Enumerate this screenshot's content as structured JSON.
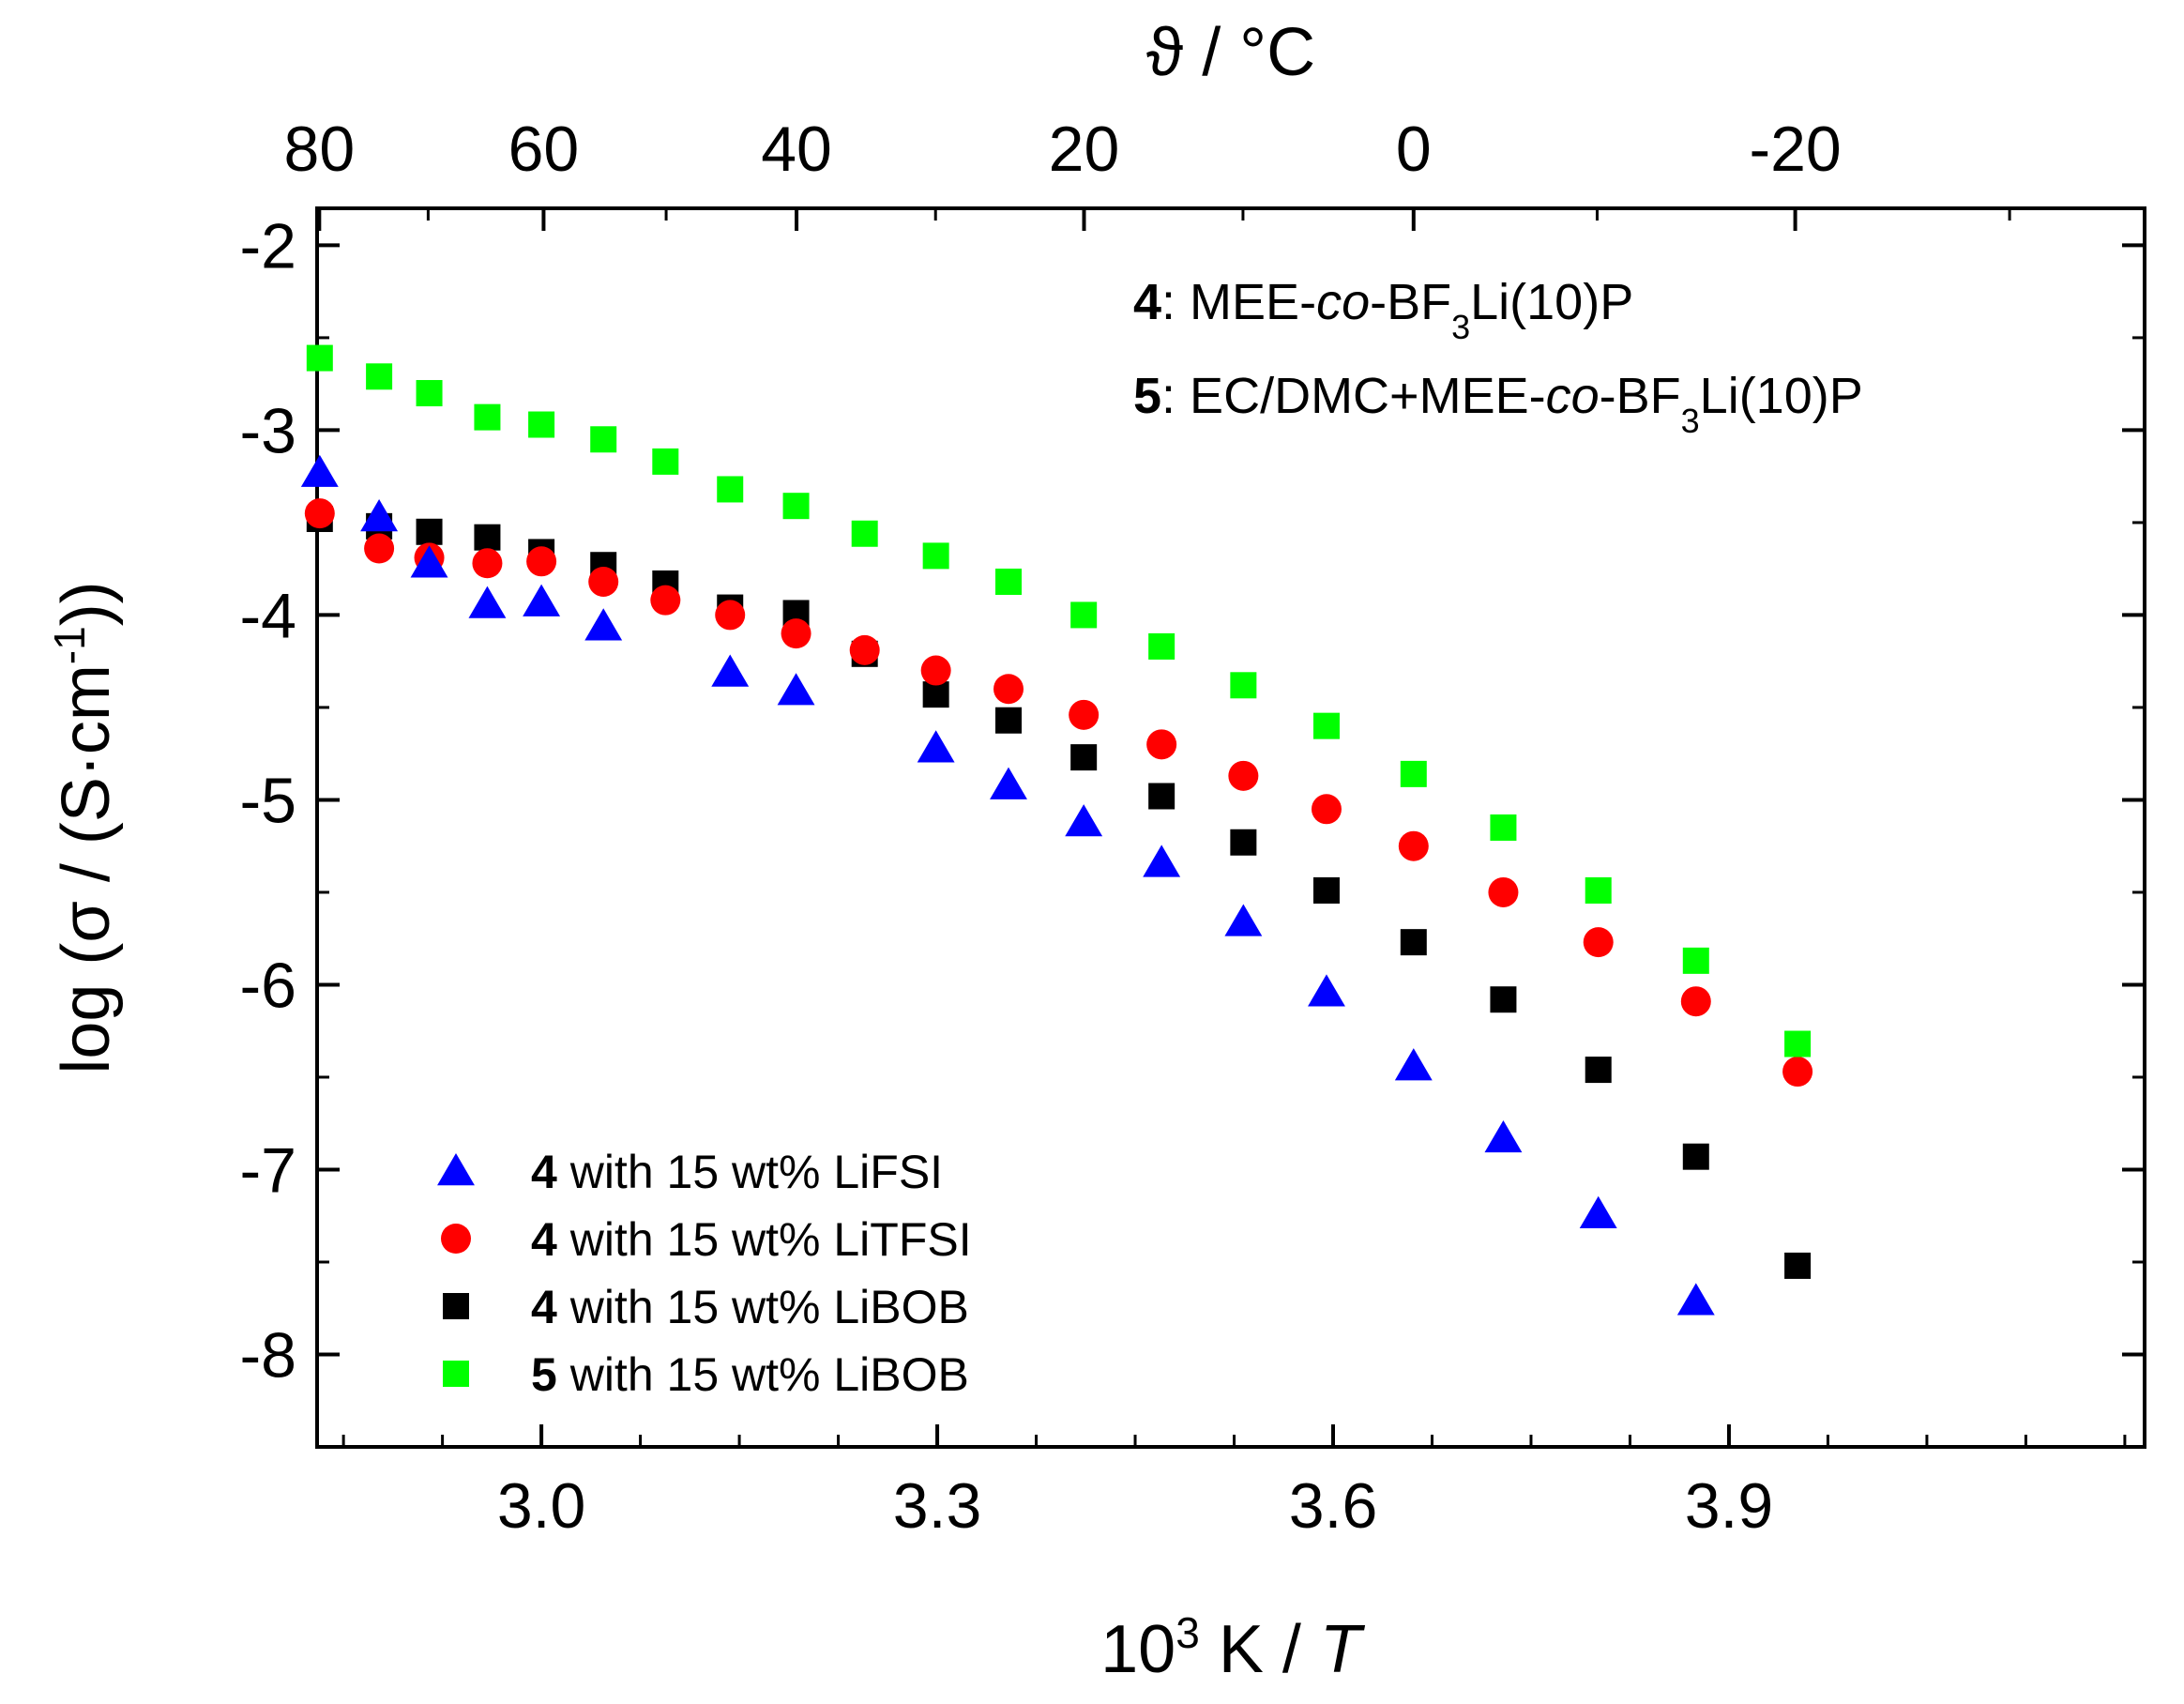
{
  "chart_data": {
    "type": "scatter",
    "xlabel": {
      "prefix": "10",
      "sup": "3",
      "mid": " K / ",
      "italic": "T"
    },
    "ylabel": {
      "prefix": "log (σ / (S·cm",
      "sup": "-1",
      "suffix": "))"
    },
    "top_xlabel": "ϑ / °C",
    "xlim": [
      2.83,
      4.215
    ],
    "ylim": [
      -8.5,
      -1.8
    ],
    "x_ticks": [
      3.0,
      3.3,
      3.6,
      3.9
    ],
    "x_tick_labels": [
      "3.0",
      "3.3",
      "3.6",
      "3.9"
    ],
    "y_ticks": [
      -2,
      -3,
      -4,
      -5,
      -6,
      -7,
      -8
    ],
    "y_tick_labels": [
      "-2",
      "-3",
      "-4",
      "-5",
      "-6",
      "-7",
      "-8"
    ],
    "top_ticks": [
      80,
      60,
      40,
      20,
      0,
      -20
    ],
    "top_tick_labels": [
      "80",
      "60",
      "40",
      "20",
      "0",
      "-20"
    ],
    "annotations": [
      {
        "num": "4",
        "parts": [
          ": MEE-",
          "co",
          "-BF",
          "3",
          "Li(10)P"
        ]
      },
      {
        "num": "5",
        "parts": [
          ": EC/DMC+MEE-",
          "co",
          "-BF",
          "3",
          "Li(10)P"
        ]
      }
    ],
    "x": [
      2.832,
      2.877,
      2.915,
      2.959,
      3.0,
      3.047,
      3.094,
      3.143,
      3.193,
      3.245,
      3.299,
      3.354,
      3.411,
      3.47,
      3.532,
      3.595,
      3.661,
      3.729,
      3.801,
      3.875,
      3.952
    ],
    "series": [
      {
        "name": "LiFSI",
        "label_num": "4",
        "label": " with 15 wt% LiFSI",
        "marker": "triangle",
        "color": "#0000ff",
        "values": [
          -3.23,
          -3.47,
          -3.72,
          -3.94,
          -3.93,
          -4.06,
          null,
          -4.31,
          -4.41,
          null,
          -4.72,
          -4.92,
          -5.12,
          -5.34,
          -5.66,
          -6.04,
          -6.44,
          -6.83,
          -7.24,
          -7.71,
          null
        ]
      },
      {
        "name": "LiTFSI",
        "label_num": "4",
        "label": " with 15 wt% LiTFSI",
        "marker": "circle",
        "color": "#ff0000",
        "values": [
          -3.45,
          -3.64,
          -3.69,
          -3.72,
          -3.71,
          -3.82,
          -3.92,
          -4.0,
          -4.1,
          -4.19,
          -4.3,
          -4.4,
          -4.54,
          -4.7,
          -4.87,
          -5.05,
          -5.25,
          -5.5,
          -5.77,
          -6.09,
          -6.47
        ]
      },
      {
        "name": "LiBOB (4)",
        "label_num": "4",
        "label": " with 15 wt% LiBOB",
        "marker": "square",
        "color": "#000000",
        "values": [
          -3.48,
          -3.52,
          -3.55,
          -3.58,
          -3.66,
          -3.73,
          -3.83,
          -3.96,
          -3.99,
          -4.21,
          -4.43,
          -4.57,
          -4.77,
          -4.98,
          -5.23,
          -5.49,
          -5.77,
          -6.08,
          -6.46,
          -6.93,
          -7.52
        ]
      },
      {
        "name": "LiBOB (5)",
        "label_num": "5",
        "label": " with 15 wt% LiBOB",
        "marker": "square",
        "color": "#00ff00",
        "values": [
          -2.61,
          -2.71,
          -2.8,
          -2.93,
          -2.97,
          -3.05,
          -3.17,
          -3.32,
          -3.41,
          -3.56,
          -3.68,
          -3.82,
          -4.0,
          -4.17,
          -4.38,
          -4.6,
          -4.86,
          -5.15,
          -5.49,
          -5.87,
          -6.32
        ]
      }
    ]
  }
}
